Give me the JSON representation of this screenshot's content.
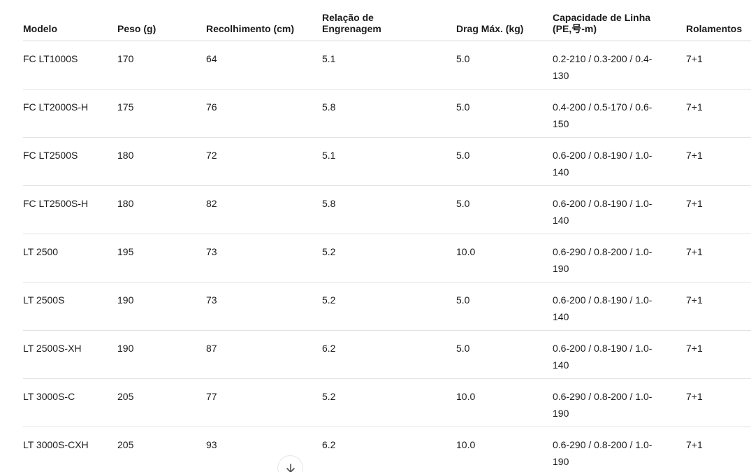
{
  "table": {
    "columns": [
      {
        "label": "Modelo"
      },
      {
        "label": "Peso (g)"
      },
      {
        "label": "Recolhimento (cm)"
      },
      {
        "label": "Relação de Engrenagem"
      },
      {
        "label": "Drag Máx. (kg)"
      },
      {
        "label": "Capacidade de Linha (PE,号-m)"
      },
      {
        "label": "Rolamentos"
      }
    ],
    "rows": [
      [
        "FC LT1000S",
        "170",
        "64",
        "5.1",
        "5.0",
        "0.2-210 / 0.3-200 / 0.4-130",
        "7+1"
      ],
      [
        "FC LT2000S-H",
        "175",
        "76",
        "5.8",
        "5.0",
        "0.4-200 / 0.5-170 / 0.6-150",
        "7+1"
      ],
      [
        "FC LT2500S",
        "180",
        "72",
        "5.1",
        "5.0",
        "0.6-200 / 0.8-190 / 1.0-140",
        "7+1"
      ],
      [
        "FC LT2500S-H",
        "180",
        "82",
        "5.8",
        "5.0",
        "0.6-200 / 0.8-190 / 1.0-140",
        "7+1"
      ],
      [
        "LT 2500",
        "195",
        "73",
        "5.2",
        "10.0",
        "0.6-290 / 0.8-200 / 1.0-190",
        "7+1"
      ],
      [
        "LT 2500S",
        "190",
        "73",
        "5.2",
        "5.0",
        "0.6-200 / 0.8-190 / 1.0-140",
        "7+1"
      ],
      [
        "LT 2500S-XH",
        "190",
        "87",
        "6.2",
        "5.0",
        "0.6-200 / 0.8-190 / 1.0-140",
        "7+1"
      ],
      [
        "LT 3000S-C",
        "205",
        "77",
        "5.2",
        "10.0",
        "0.6-290 / 0.8-200 / 1.0-190",
        "7+1"
      ],
      [
        "LT 3000S-CXH",
        "205",
        "93",
        "6.2",
        "10.0",
        "0.6-290 / 0.8-200 / 1.0-190",
        "7+1"
      ]
    ]
  },
  "scroll_button": {
    "icon": "arrow-down-icon"
  },
  "colors": {
    "text": "#1b1b1b",
    "header_divider": "#d6d6d6",
    "row_divider": "#e2e2e2",
    "button_border": "#e6e6e6",
    "button_glyph": "#4d4d4d"
  }
}
